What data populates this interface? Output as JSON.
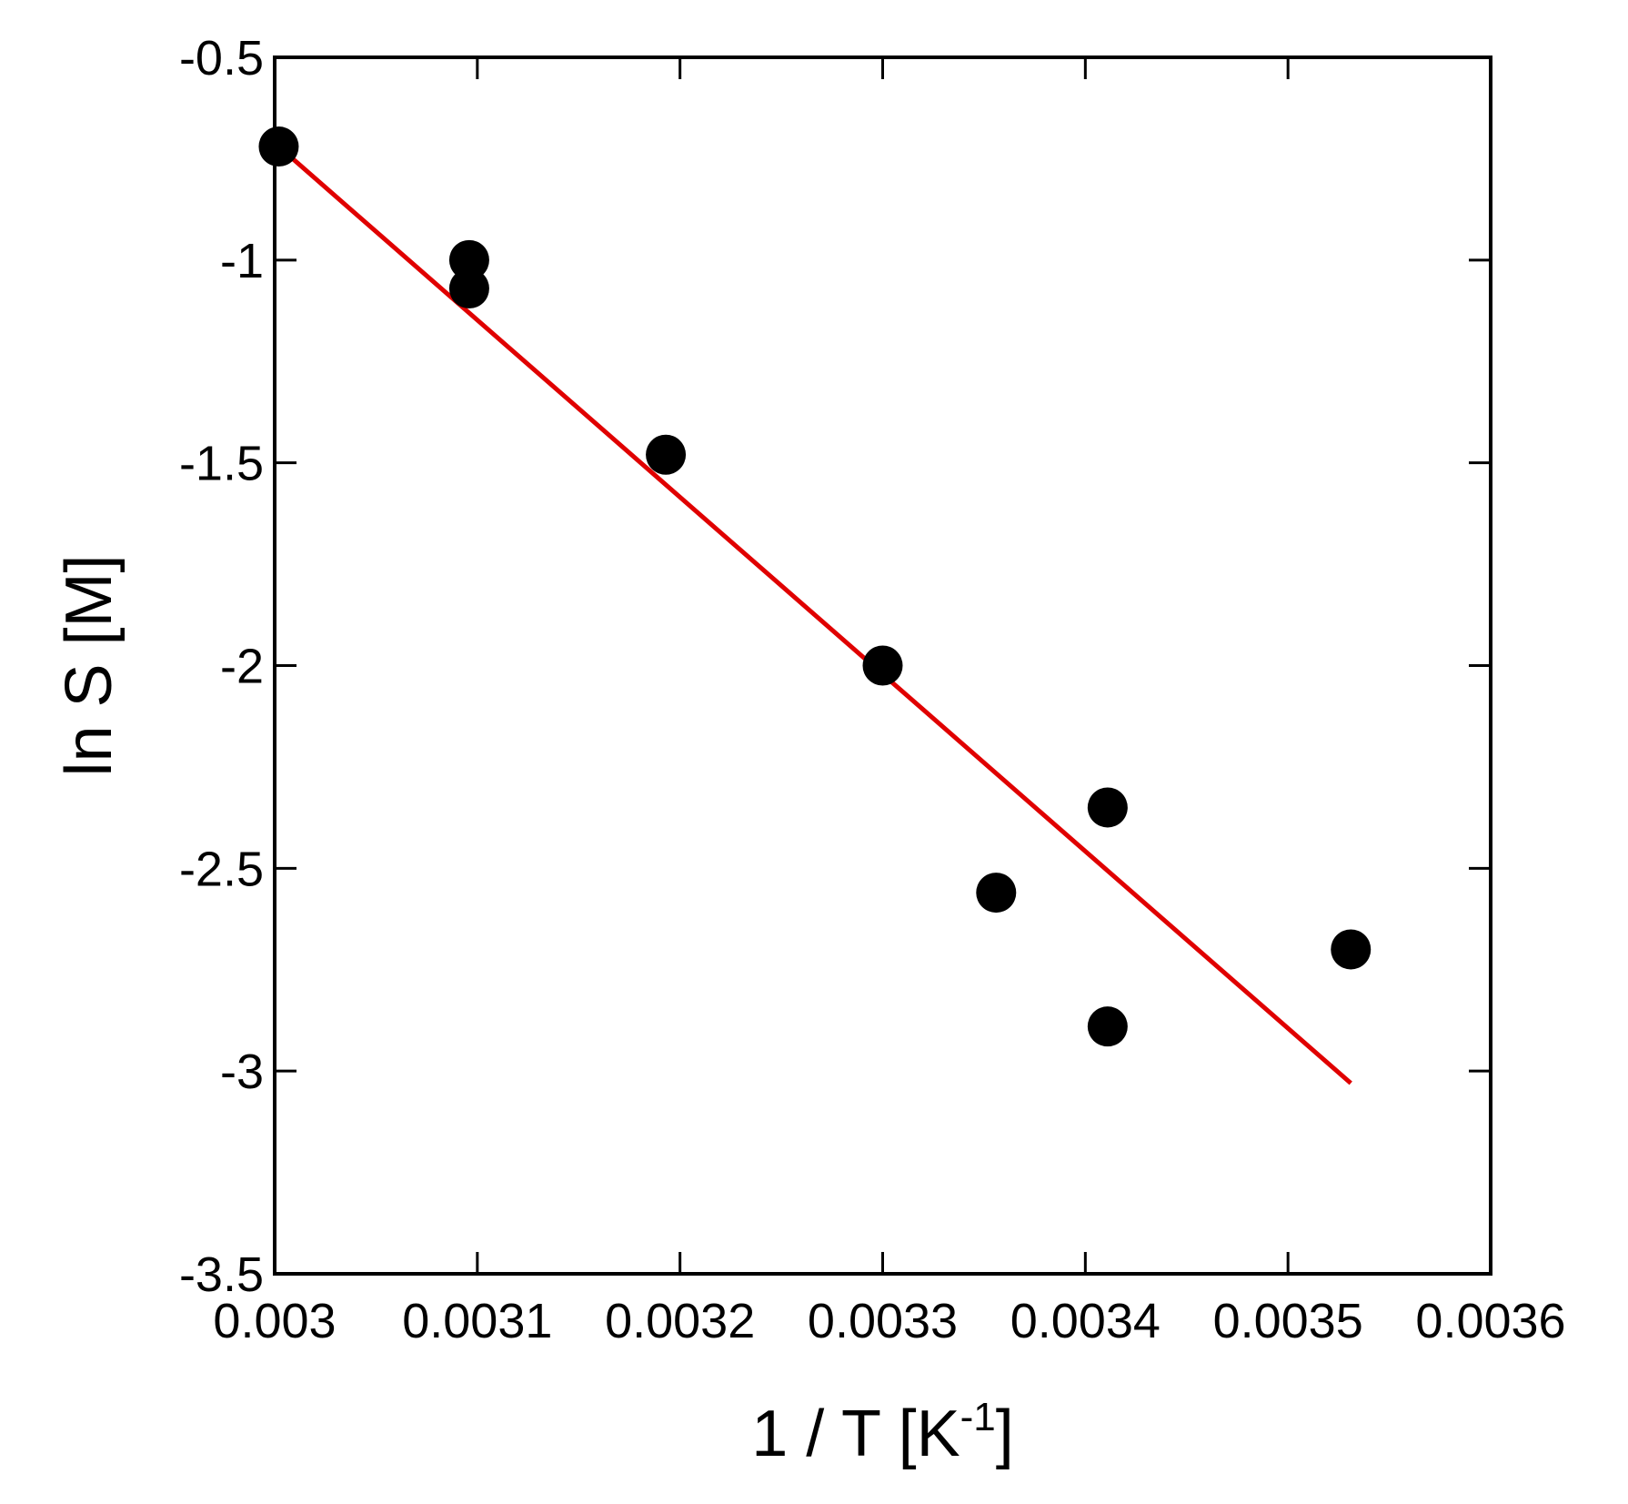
{
  "chart_data": {
    "type": "scatter",
    "title": "",
    "xlabel": "1 / T [K",
    "xlabel_superscript": "-1",
    "xlabel_suffix": "]",
    "ylabel": "ln S [M]",
    "xlim": [
      0.003,
      0.0036
    ],
    "ylim": [
      -3.5,
      -0.5
    ],
    "x_ticks": [
      0.003,
      0.0031,
      0.0032,
      0.0033,
      0.0034,
      0.0035,
      0.0036
    ],
    "x_tick_labels": [
      "0.003",
      "0.0031",
      "0.0032",
      "0.0033",
      "0.0034",
      "0.0035",
      "0.0036"
    ],
    "y_ticks": [
      -0.5,
      -1,
      -1.5,
      -2,
      -2.5,
      -3,
      -3.5
    ],
    "y_tick_labels": [
      "-0.5",
      "-1",
      "-1.5",
      "-2",
      "-2.5",
      "-3",
      "-3.5"
    ],
    "grid": false,
    "series": [
      {
        "type": "scatter",
        "color": "#000000",
        "x": [
          0.003002,
          0.003096,
          0.003096,
          0.003193,
          0.0033,
          0.003356,
          0.003411,
          0.003411,
          0.003531
        ],
        "y": [
          -0.72,
          -1.0,
          -1.07,
          -1.48,
          -2.0,
          -2.56,
          -2.35,
          -2.89,
          -2.7
        ]
      },
      {
        "type": "line",
        "color": "#e00000",
        "x": [
          0.003002,
          0.003531
        ],
        "y": [
          -0.72,
          -3.03
        ]
      }
    ]
  }
}
